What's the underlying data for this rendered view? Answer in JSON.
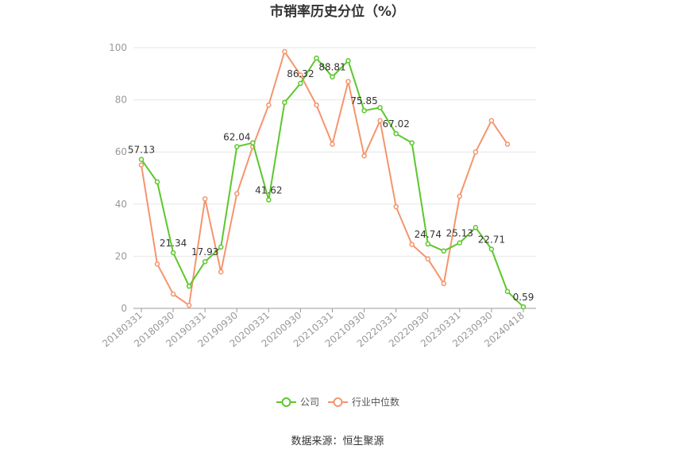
{
  "chart_data": {
    "type": "line",
    "title": "市销率历史分位（%）",
    "source": "数据来源：恒生聚源",
    "ylim": [
      0,
      100
    ],
    "y_ticks": [
      "0",
      "20",
      "40",
      "60",
      "80",
      "100"
    ],
    "x_tick_labels": [
      "20180331",
      "20180930",
      "20190331",
      "20190930",
      "20200331",
      "20200930",
      "20210331",
      "20210930",
      "20220331",
      "20220930",
      "20230331",
      "20230930",
      "20240418"
    ],
    "grid": true,
    "legend_position": "bottom",
    "colors": {
      "company": "#5cc72c",
      "industry": "#f4956d",
      "grid": "#e6e6e6",
      "axis": "#999999"
    },
    "x": [
      "20180331",
      "20180630",
      "20180930",
      "20181231",
      "20190331",
      "20190630",
      "20190930",
      "20191231",
      "20200331",
      "20200630",
      "20200930",
      "20201231",
      "20210331",
      "20210630",
      "20210930",
      "20211231",
      "20220331",
      "20220630",
      "20220930",
      "20221231",
      "20230331",
      "20230630",
      "20230930",
      "20231231",
      "20240418"
    ],
    "series": [
      {
        "name": "公司",
        "values": [
          57.13,
          48.5,
          21.34,
          8.5,
          17.93,
          23.5,
          62.04,
          63.5,
          41.62,
          79.0,
          86.32,
          96.0,
          88.81,
          95.0,
          75.85,
          77.0,
          67.02,
          63.5,
          24.74,
          22.0,
          25.13,
          31.0,
          22.71,
          6.5,
          0.59
        ],
        "labels": {
          "0": "57.13",
          "2": "21.34",
          "4": "17.93",
          "6": "62.04",
          "8": "41.62",
          "10": "86.32",
          "12": "88.81",
          "14": "75.85",
          "16": "67.02",
          "18": "24.74",
          "20": "25.13",
          "22": "22.71",
          "24": "0.59"
        }
      },
      {
        "name": "行业中位数",
        "values": [
          55.0,
          17.0,
          5.5,
          1.2,
          42.0,
          14.0,
          44.0,
          62.0,
          78.0,
          98.5,
          89.5,
          78.0,
          63.0,
          87.0,
          58.5,
          72.0,
          39.0,
          24.5,
          19.0,
          9.5,
          43.0,
          60.0,
          72.0,
          63.0,
          null
        ]
      }
    ]
  }
}
